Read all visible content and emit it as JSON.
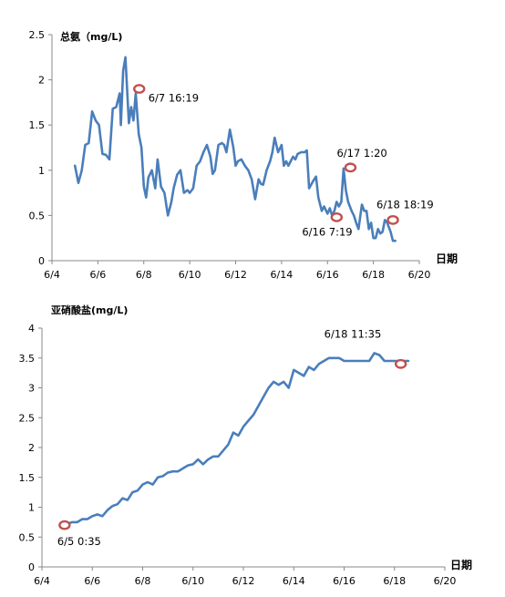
{
  "chart_data": [
    {
      "type": "line",
      "title": "总氨（mg/L)",
      "xlabel": "日期",
      "ylabel": "",
      "xlim": [
        4,
        20
      ],
      "ylim": [
        0,
        2.5
      ],
      "x_ticks": [
        {
          "v": 4,
          "label": "6/4"
        },
        {
          "v": 6,
          "label": "6/6"
        },
        {
          "v": 8,
          "label": "6/8"
        },
        {
          "v": 10,
          "label": "6/10"
        },
        {
          "v": 12,
          "label": "6/12"
        },
        {
          "v": 14,
          "label": "6/14"
        },
        {
          "v": 16,
          "label": "6/16"
        },
        {
          "v": 18,
          "label": "6/18"
        },
        {
          "v": 20,
          "label": "6/20"
        }
      ],
      "y_ticks": [
        {
          "v": 0,
          "label": "0"
        },
        {
          "v": 0.5,
          "label": "0.5"
        },
        {
          "v": 1,
          "label": "1"
        },
        {
          "v": 1.5,
          "label": "1.5"
        },
        {
          "v": 2,
          "label": "2"
        },
        {
          "v": 2.5,
          "label": "2.5"
        }
      ],
      "grid": false,
      "line_color": "#4a7ebb",
      "marker_color": "#c0504d",
      "series": [
        {
          "x": [
            5.0,
            5.15,
            5.3,
            5.45,
            5.6,
            5.75,
            5.9,
            6.05,
            6.2,
            6.35,
            6.5,
            6.65,
            6.8,
            6.95,
            7.0,
            7.1,
            7.2,
            7.35,
            7.45,
            7.55,
            7.65,
            7.78,
            7.9,
            8.0,
            8.1,
            8.2,
            8.35,
            8.5,
            8.6,
            8.75,
            8.9,
            9.05,
            9.2,
            9.3,
            9.45,
            9.6,
            9.75,
            9.9,
            10.0,
            10.15,
            10.3,
            10.45,
            10.6,
            10.75,
            10.9,
            11.0,
            11.1,
            11.25,
            11.4,
            11.5,
            11.6,
            11.75,
            11.9,
            12.0,
            12.1,
            12.25,
            12.4,
            12.55,
            12.7,
            12.85,
            13.0,
            13.1,
            13.2,
            13.35,
            13.5,
            13.6,
            13.7,
            13.85,
            14.0,
            14.1,
            14.2,
            14.3,
            14.4,
            14.5,
            14.6,
            14.7,
            14.85,
            15.0,
            15.1,
            15.2,
            15.35,
            15.5,
            15.6,
            15.75,
            15.85,
            16.0,
            16.1,
            16.2,
            16.3,
            16.4,
            16.5,
            16.6,
            16.7,
            16.8,
            16.9,
            17.05,
            17.15,
            17.25,
            17.35,
            17.5,
            17.6,
            17.7,
            17.8,
            17.9,
            18.0,
            18.1,
            18.2,
            18.3,
            18.4,
            18.5,
            18.6,
            18.75,
            18.85,
            18.95
          ],
          "y": [
            1.05,
            0.86,
            1.0,
            1.28,
            1.3,
            1.65,
            1.55,
            1.5,
            1.18,
            1.17,
            1.12,
            1.68,
            1.7,
            1.85,
            1.5,
            2.1,
            2.25,
            1.52,
            1.7,
            1.55,
            1.85,
            1.4,
            1.25,
            0.82,
            0.7,
            0.92,
            1.0,
            0.8,
            1.12,
            0.82,
            0.75,
            0.5,
            0.65,
            0.8,
            0.95,
            1.0,
            0.75,
            0.78,
            0.75,
            0.8,
            1.05,
            1.1,
            1.2,
            1.28,
            1.15,
            0.96,
            1.0,
            1.28,
            1.3,
            1.28,
            1.2,
            1.45,
            1.25,
            1.05,
            1.1,
            1.12,
            1.05,
            1.0,
            0.9,
            0.68,
            0.9,
            0.85,
            0.84,
            1.0,
            1.1,
            1.2,
            1.36,
            1.2,
            1.28,
            1.05,
            1.1,
            1.05,
            1.1,
            1.15,
            1.12,
            1.18,
            1.2,
            1.2,
            1.22,
            0.8,
            0.87,
            0.93,
            0.7,
            0.55,
            0.6,
            0.52,
            0.58,
            0.5,
            0.55,
            0.65,
            0.6,
            0.65,
            1.02,
            0.78,
            0.65,
            0.55,
            0.5,
            0.42,
            0.35,
            0.62,
            0.55,
            0.55,
            0.35,
            0.42,
            0.25,
            0.25,
            0.35,
            0.3,
            0.32,
            0.45,
            0.42,
            0.32,
            0.22,
            0.22
          ]
        }
      ],
      "annotations": [
        {
          "x": 7.8,
          "y": 1.9,
          "text": "6/7  16:19"
        },
        {
          "x": 16.4,
          "y": 0.48,
          "text": "6/16 7:19"
        },
        {
          "x": 17.0,
          "y": 1.03,
          "text": "6/17 1:20"
        },
        {
          "x": 18.85,
          "y": 0.45,
          "text": "6/18  18:19"
        }
      ]
    },
    {
      "type": "line",
      "title": "亚硝酸盐(mg/L)",
      "xlabel": "日期",
      "ylabel": "",
      "xlim": [
        4,
        20
      ],
      "ylim": [
        0,
        4
      ],
      "x_ticks": [
        {
          "v": 4,
          "label": "6/4"
        },
        {
          "v": 6,
          "label": "6/6"
        },
        {
          "v": 8,
          "label": "6/8"
        },
        {
          "v": 10,
          "label": "6/10"
        },
        {
          "v": 12,
          "label": "6/12"
        },
        {
          "v": 14,
          "label": "6/14"
        },
        {
          "v": 16,
          "label": "6/16"
        },
        {
          "v": 18,
          "label": "6/18"
        },
        {
          "v": 20,
          "label": "6/20"
        }
      ],
      "y_ticks": [
        {
          "v": 0,
          "label": "0"
        },
        {
          "v": 0.5,
          "label": "0.5"
        },
        {
          "v": 1,
          "label": "1"
        },
        {
          "v": 1.5,
          "label": "1.5"
        },
        {
          "v": 2,
          "label": "2"
        },
        {
          "v": 2.5,
          "label": "2.5"
        },
        {
          "v": 3,
          "label": "3"
        },
        {
          "v": 3.5,
          "label": "3.5"
        },
        {
          "v": 4,
          "label": "4"
        }
      ],
      "grid": false,
      "line_color": "#4a7ebb",
      "marker_color": "#c0504d",
      "series": [
        {
          "x": [
            5.0,
            5.2,
            5.4,
            5.6,
            5.8,
            6.0,
            6.2,
            6.4,
            6.6,
            6.8,
            7.0,
            7.2,
            7.4,
            7.6,
            7.8,
            8.0,
            8.2,
            8.4,
            8.6,
            8.8,
            9.0,
            9.2,
            9.4,
            9.6,
            9.8,
            10.0,
            10.2,
            10.4,
            10.6,
            10.8,
            11.0,
            11.2,
            11.4,
            11.6,
            11.8,
            12.0,
            12.2,
            12.4,
            12.6,
            12.8,
            13.0,
            13.2,
            13.4,
            13.6,
            13.8,
            14.0,
            14.2,
            14.4,
            14.6,
            14.8,
            15.0,
            15.2,
            15.4,
            15.6,
            15.8,
            16.0,
            16.2,
            16.4,
            16.6,
            16.8,
            17.0,
            17.2,
            17.4,
            17.6,
            17.8,
            18.0,
            18.2,
            18.4,
            18.55
          ],
          "y": [
            0.72,
            0.75,
            0.75,
            0.8,
            0.8,
            0.85,
            0.88,
            0.85,
            0.95,
            1.02,
            1.05,
            1.15,
            1.12,
            1.25,
            1.28,
            1.38,
            1.42,
            1.38,
            1.5,
            1.52,
            1.58,
            1.6,
            1.6,
            1.65,
            1.7,
            1.72,
            1.8,
            1.72,
            1.8,
            1.85,
            1.85,
            1.95,
            2.05,
            2.25,
            2.2,
            2.35,
            2.45,
            2.55,
            2.7,
            2.85,
            3.0,
            3.1,
            3.05,
            3.1,
            3.0,
            3.3,
            3.25,
            3.2,
            3.35,
            3.3,
            3.4,
            3.45,
            3.5,
            3.5,
            3.5,
            3.45,
            3.45,
            3.45,
            3.45,
            3.45,
            3.45,
            3.58,
            3.55,
            3.45,
            3.45,
            3.45,
            3.45,
            3.45,
            3.45
          ]
        }
      ],
      "annotations": [
        {
          "x": 4.9,
          "y": 0.7,
          "text": "6/5  0:35"
        },
        {
          "x": 18.25,
          "y": 3.4,
          "text": "6/18  11:35"
        }
      ]
    }
  ]
}
